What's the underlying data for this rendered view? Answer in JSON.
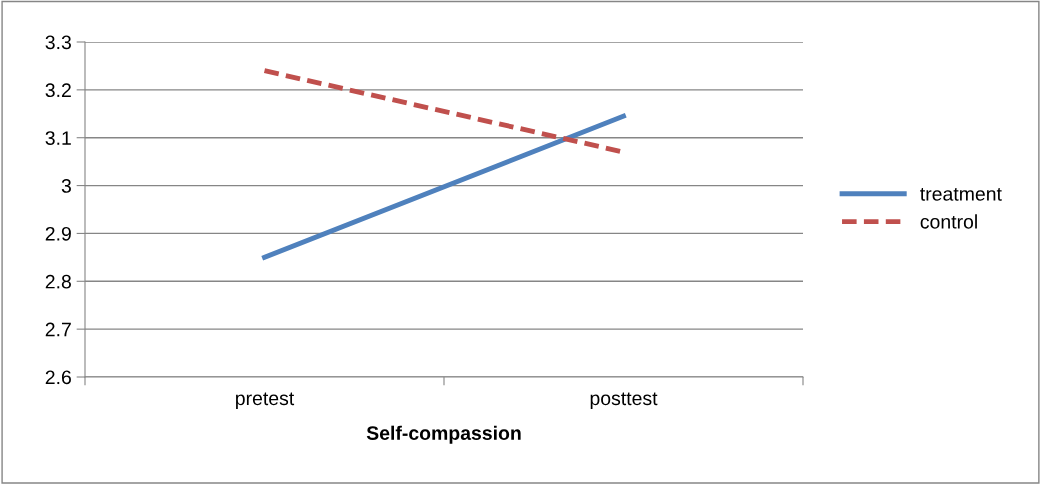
{
  "chart_data": {
    "type": "line",
    "xlabel": "Self-compassion",
    "categories": [
      "pretest",
      "posttest"
    ],
    "series": [
      {
        "name": "treatment",
        "color": "#4f81bd",
        "values": [
          2.85,
          3.145
        ],
        "line_style": "solid"
      },
      {
        "name": "control",
        "color": "#c0504d",
        "values": [
          3.24,
          3.07
        ],
        "line_style": "dashed"
      }
    ],
    "ylim": [
      2.6,
      3.3
    ],
    "yticks": [
      2.6,
      2.7,
      2.8,
      2.9,
      3,
      3.1,
      3.2,
      3.3
    ],
    "grid": "y",
    "legend": "right",
    "marker": "none"
  }
}
